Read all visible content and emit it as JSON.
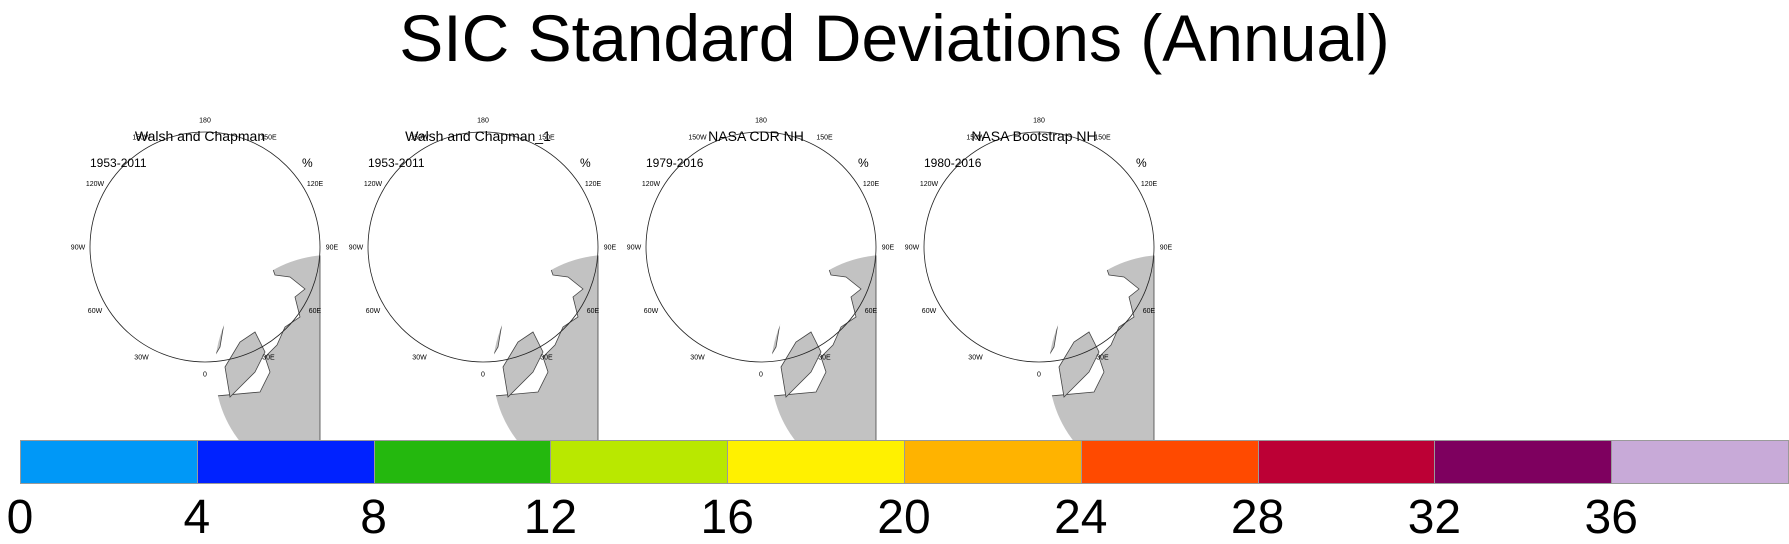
{
  "title": "SIC Standard Deviations (Annual)",
  "longitude_labels": [
    "180",
    "150E",
    "120E",
    "90E",
    "60E",
    "30E",
    "0",
    "30W",
    "60W",
    "90W",
    "120W",
    "150W"
  ],
  "panels": [
    {
      "title": "Walsh and Chapman",
      "period": "1953-2011",
      "unit": "%",
      "ice": [
        {
          "level": "0-4",
          "color": "#36a7f5"
        },
        {
          "level": "4-8",
          "color": "#0a22f0"
        },
        {
          "level": "8-12",
          "color": "#22bb12"
        }
      ]
    },
    {
      "title": "Walsh and Chapman_1",
      "period": "1953-2011",
      "unit": "%",
      "ice": [
        {
          "level": "0-4",
          "color": "#36a7f5"
        },
        {
          "level": "4-8",
          "color": "#0a22f0"
        }
      ]
    },
    {
      "title": "NASA CDR NH",
      "period": "1979-2016",
      "unit": "%",
      "ice": [
        {
          "level": "0-4",
          "color": "#36a7f5"
        },
        {
          "level": "4-8",
          "color": "#0a22f0"
        },
        {
          "level": "8-12",
          "color": "#22bb12"
        },
        {
          "level": "12-16",
          "color": "#b8e800"
        }
      ]
    },
    {
      "title": "NASA Bootstrap NH",
      "period": "1980-2016",
      "unit": "%",
      "ice": [
        {
          "level": "0-4",
          "color": "#36a7f5"
        },
        {
          "level": "4-8",
          "color": "#0a22f0"
        },
        {
          "level": "8-12",
          "color": "#22bb12"
        },
        {
          "level": "12-16",
          "color": "#b8e800"
        }
      ]
    }
  ],
  "colorbar": {
    "ticks": [
      "0",
      "4",
      "8",
      "12",
      "16",
      "20",
      "24",
      "28",
      "32",
      "36"
    ],
    "colors": [
      "#0098f7",
      "#0022ff",
      "#24b80e",
      "#b9e800",
      "#fff100",
      "#ffb300",
      "#ff4a00",
      "#bc0035",
      "#7e005f",
      "#c8aad8"
    ]
  },
  "colors": {
    "land": "#c2c2c2",
    "ocean": "#ffffff",
    "outline": "#444444"
  }
}
